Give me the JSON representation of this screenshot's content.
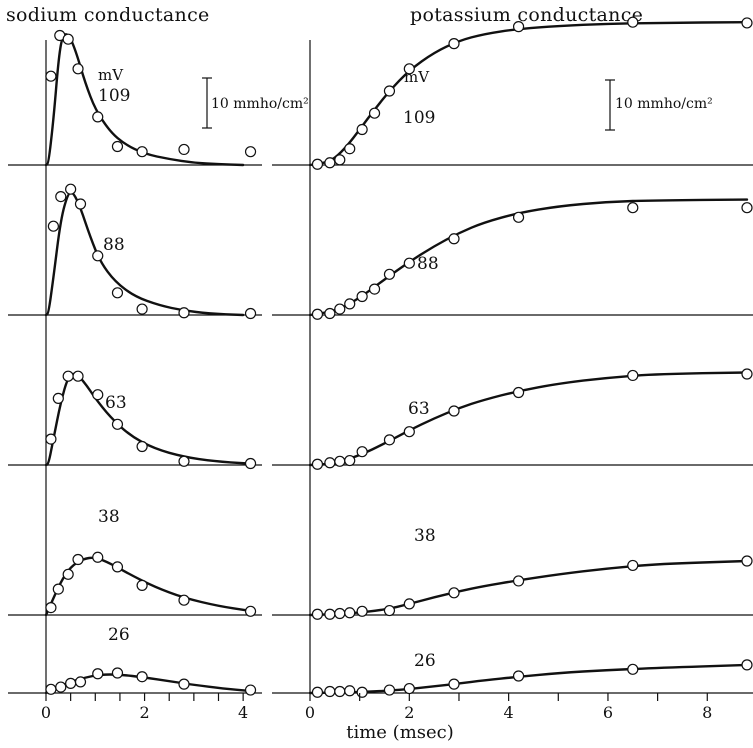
{
  "figure": {
    "left_title": "sodium conductance",
    "right_title": "potassium conductance",
    "xlabel": "time (msec)",
    "scale_bar_label": "10 mmho/cm²",
    "voltage_unit": "mV"
  },
  "chart_data": [
    {
      "type": "line",
      "title": "sodium conductance",
      "xlabel": "time (msec)",
      "ylabel": "",
      "xlim": [
        0,
        4.2
      ],
      "xticks": [
        0,
        2,
        4
      ],
      "scale_bar": "10 mmho/cm²",
      "scale_bar_units": 10,
      "ylim": [
        0,
        20
      ],
      "grid": false,
      "series": [
        {
          "name": "109",
          "curve": [
            [
              0,
              0
            ],
            [
              0.05,
              0.2
            ],
            [
              0.15,
              6
            ],
            [
              0.25,
              14
            ],
            [
              0.33,
              17.5
            ],
            [
              0.45,
              17.8
            ],
            [
              0.6,
              15.5
            ],
            [
              0.8,
              11
            ],
            [
              1.0,
              7.5
            ],
            [
              1.3,
              4.5
            ],
            [
              1.6,
              2.8
            ],
            [
              2.0,
              1.5
            ],
            [
              2.5,
              0.8
            ],
            [
              3.0,
              0.3
            ],
            [
              3.5,
              0.1
            ],
            [
              4.0,
              0
            ]
          ],
          "points": [
            [
              0.1,
              12
            ],
            [
              0.28,
              17.5
            ],
            [
              0.45,
              17
            ],
            [
              0.65,
              13
            ],
            [
              1.05,
              6.5
            ],
            [
              1.45,
              2.5
            ],
            [
              1.95,
              1.8
            ],
            [
              2.8,
              2.1
            ],
            [
              4.15,
              1.8
            ]
          ]
        },
        {
          "name": "88",
          "curve": [
            [
              0,
              0
            ],
            [
              0.05,
              0.2
            ],
            [
              0.15,
              5
            ],
            [
              0.3,
              13
            ],
            [
              0.45,
              16.5
            ],
            [
              0.55,
              16.6
            ],
            [
              0.7,
              14.5
            ],
            [
              0.9,
              10.5
            ],
            [
              1.1,
              7.2
            ],
            [
              1.4,
              4.5
            ],
            [
              1.8,
              2.5
            ],
            [
              2.3,
              1.3
            ],
            [
              2.8,
              0.6
            ],
            [
              3.3,
              0.2
            ],
            [
              4.0,
              0
            ]
          ],
          "points": [
            [
              0.15,
              12
            ],
            [
              0.3,
              16
            ],
            [
              0.5,
              17
            ],
            [
              0.7,
              15
            ],
            [
              1.05,
              8
            ],
            [
              1.45,
              3
            ],
            [
              1.95,
              0.8
            ],
            [
              2.8,
              0.3
            ],
            [
              4.15,
              0.2
            ]
          ]
        },
        {
          "name": "63",
          "curve": [
            [
              0,
              0
            ],
            [
              0.05,
              0.1
            ],
            [
              0.15,
              3.5
            ],
            [
              0.3,
              8.5
            ],
            [
              0.45,
              12
            ],
            [
              0.6,
              12.5
            ],
            [
              0.8,
              11
            ],
            [
              1.0,
              9
            ],
            [
              1.3,
              6.5
            ],
            [
              1.7,
              4
            ],
            [
              2.2,
              2.2
            ],
            [
              2.8,
              1.1
            ],
            [
              3.4,
              0.5
            ],
            [
              4.1,
              0.2
            ]
          ],
          "points": [
            [
              0.1,
              3.5
            ],
            [
              0.25,
              9
            ],
            [
              0.45,
              12
            ],
            [
              0.65,
              12
            ],
            [
              1.05,
              9.5
            ],
            [
              1.45,
              5.5
            ],
            [
              1.95,
              2.5
            ],
            [
              2.8,
              0.5
            ],
            [
              4.15,
              0.2
            ]
          ]
        },
        {
          "name": "38",
          "curve": [
            [
              0,
              0
            ],
            [
              0.1,
              1.5
            ],
            [
              0.3,
              4.5
            ],
            [
              0.5,
              6.5
            ],
            [
              0.75,
              7.6
            ],
            [
              1.0,
              7.8
            ],
            [
              1.3,
              7
            ],
            [
              1.7,
              5.5
            ],
            [
              2.2,
              3.8
            ],
            [
              2.8,
              2.3
            ],
            [
              3.5,
              1.2
            ],
            [
              4.1,
              0.6
            ]
          ],
          "points": [
            [
              0.1,
              1.0
            ],
            [
              0.25,
              3.5
            ],
            [
              0.45,
              5.5
            ],
            [
              0.65,
              7.5
            ],
            [
              1.05,
              7.8
            ],
            [
              1.45,
              6.5
            ],
            [
              1.95,
              4
            ],
            [
              2.8,
              2
            ],
            [
              4.15,
              0.5
            ]
          ]
        },
        {
          "name": "26",
          "curve": [
            [
              0,
              0
            ],
            [
              0.2,
              0.7
            ],
            [
              0.5,
              1.5
            ],
            [
              0.8,
              2.1
            ],
            [
              1.1,
              2.5
            ],
            [
              1.5,
              2.5
            ],
            [
              2.0,
              2.1
            ],
            [
              2.5,
              1.6
            ],
            [
              3.0,
              1.1
            ],
            [
              3.6,
              0.6
            ],
            [
              4.1,
              0.3
            ]
          ],
          "points": [
            [
              0.1,
              0.5
            ],
            [
              0.3,
              0.8
            ],
            [
              0.5,
              1.3
            ],
            [
              0.7,
              1.5
            ],
            [
              1.05,
              2.6
            ],
            [
              1.45,
              2.7
            ],
            [
              1.95,
              2.2
            ],
            [
              2.8,
              1.2
            ],
            [
              4.15,
              0.4
            ]
          ]
        }
      ]
    },
    {
      "type": "line",
      "title": "potassium conductance",
      "xlabel": "time (msec)",
      "ylabel": "",
      "xlim": [
        0,
        8.8
      ],
      "xticks": [
        0,
        2,
        4,
        6,
        8
      ],
      "scale_bar": "10 mmho/cm²",
      "scale_bar_units": 10,
      "ylim": [
        0,
        20
      ],
      "grid": false,
      "series": [
        {
          "name": "109",
          "curve": [
            [
              0,
              0
            ],
            [
              0.3,
              0.3
            ],
            [
              0.5,
              0.9
            ],
            [
              0.75,
              2.6
            ],
            [
              1.0,
              4.8
            ],
            [
              1.3,
              7.5
            ],
            [
              1.6,
              10
            ],
            [
              2.0,
              12.8
            ],
            [
              2.5,
              15.2
            ],
            [
              3.0,
              16.8
            ],
            [
              3.5,
              17.7
            ],
            [
              4.2,
              18.4
            ],
            [
              5.0,
              18.8
            ],
            [
              6.0,
              19.1
            ],
            [
              7.0,
              19.2
            ],
            [
              8.8,
              19.3
            ]
          ],
          "points": [
            [
              0.15,
              0.1
            ],
            [
              0.4,
              0.3
            ],
            [
              0.6,
              0.7
            ],
            [
              0.8,
              2.2
            ],
            [
              1.05,
              4.8
            ],
            [
              1.3,
              7
            ],
            [
              1.6,
              10
            ],
            [
              2.0,
              13
            ],
            [
              2.9,
              16.4
            ],
            [
              4.2,
              18.7
            ],
            [
              6.5,
              19.3
            ],
            [
              8.8,
              19.2
            ]
          ]
        },
        {
          "name": "88",
          "curve": [
            [
              0,
              0
            ],
            [
              0.3,
              0.3
            ],
            [
              0.6,
              0.8
            ],
            [
              1.0,
              2.3
            ],
            [
              1.5,
              4.8
            ],
            [
              2.0,
              7.2
            ],
            [
              2.5,
              9.3
            ],
            [
              3.0,
              11.1
            ],
            [
              3.5,
              12.5
            ],
            [
              4.2,
              13.8
            ],
            [
              5.0,
              14.7
            ],
            [
              6.0,
              15.3
            ],
            [
              7.0,
              15.5
            ],
            [
              8.8,
              15.6
            ]
          ],
          "points": [
            [
              0.15,
              0.1
            ],
            [
              0.4,
              0.2
            ],
            [
              0.6,
              0.8
            ],
            [
              0.8,
              1.5
            ],
            [
              1.05,
              2.5
            ],
            [
              1.3,
              3.5
            ],
            [
              1.6,
              5.5
            ],
            [
              2.0,
              7
            ],
            [
              2.9,
              10.3
            ],
            [
              4.2,
              13.2
            ],
            [
              6.5,
              14.5
            ],
            [
              8.8,
              14.5
            ]
          ]
        },
        {
          "name": "63",
          "curve": [
            [
              0,
              0
            ],
            [
              0.5,
              0.2
            ],
            [
              1.0,
              1.3
            ],
            [
              1.5,
              2.9
            ],
            [
              2.0,
              4.7
            ],
            [
              2.5,
              6.3
            ],
            [
              3.0,
              7.7
            ],
            [
              3.5,
              8.8
            ],
            [
              4.2,
              10
            ],
            [
              5.0,
              11
            ],
            [
              6.0,
              11.8
            ],
            [
              7.0,
              12.3
            ],
            [
              8.8,
              12.5
            ]
          ],
          "points": [
            [
              0.15,
              0.1
            ],
            [
              0.4,
              0.3
            ],
            [
              0.6,
              0.5
            ],
            [
              0.8,
              0.6
            ],
            [
              1.05,
              1.8
            ],
            [
              1.6,
              3.4
            ],
            [
              2.0,
              4.5
            ],
            [
              2.9,
              7.3
            ],
            [
              4.2,
              9.8
            ],
            [
              6.5,
              12.1
            ],
            [
              8.8,
              12.3
            ]
          ]
        },
        {
          "name": "38",
          "curve": [
            [
              0,
              0
            ],
            [
              0.8,
              0.2
            ],
            [
              1.5,
              0.7
            ],
            [
              2.0,
              1.5
            ],
            [
              2.5,
              2.4
            ],
            [
              3.0,
              3.2
            ],
            [
              3.5,
              3.9
            ],
            [
              4.2,
              4.7
            ],
            [
              5.0,
              5.5
            ],
            [
              6.0,
              6.3
            ],
            [
              7.0,
              6.9
            ],
            [
              8.8,
              7.3
            ]
          ],
          "points": [
            [
              0.15,
              0.1
            ],
            [
              0.4,
              0.1
            ],
            [
              0.6,
              0.2
            ],
            [
              0.8,
              0.3
            ],
            [
              1.05,
              0.5
            ],
            [
              1.6,
              0.6
            ],
            [
              2.0,
              1.5
            ],
            [
              2.9,
              3.0
            ],
            [
              4.2,
              4.6
            ],
            [
              6.5,
              6.7
            ],
            [
              8.8,
              7.3
            ]
          ]
        },
        {
          "name": "26",
          "curve": [
            [
              0,
              0
            ],
            [
              1.0,
              0.1
            ],
            [
              1.8,
              0.4
            ],
            [
              2.5,
              0.9
            ],
            [
              3.0,
              1.3
            ],
            [
              3.5,
              1.7
            ],
            [
              4.2,
              2.2
            ],
            [
              5.0,
              2.7
            ],
            [
              6.0,
              3.1
            ],
            [
              7.0,
              3.4
            ],
            [
              8.8,
              3.8
            ]
          ],
          "points": [
            [
              0.15,
              0.1
            ],
            [
              0.4,
              0.2
            ],
            [
              0.6,
              0.2
            ],
            [
              0.8,
              0.3
            ],
            [
              1.05,
              0.1
            ],
            [
              1.6,
              0.4
            ],
            [
              2.0,
              0.6
            ],
            [
              2.9,
              1.2
            ],
            [
              4.2,
              2.3
            ],
            [
              6.5,
              3.2
            ],
            [
              8.8,
              3.8
            ]
          ]
        }
      ]
    }
  ]
}
